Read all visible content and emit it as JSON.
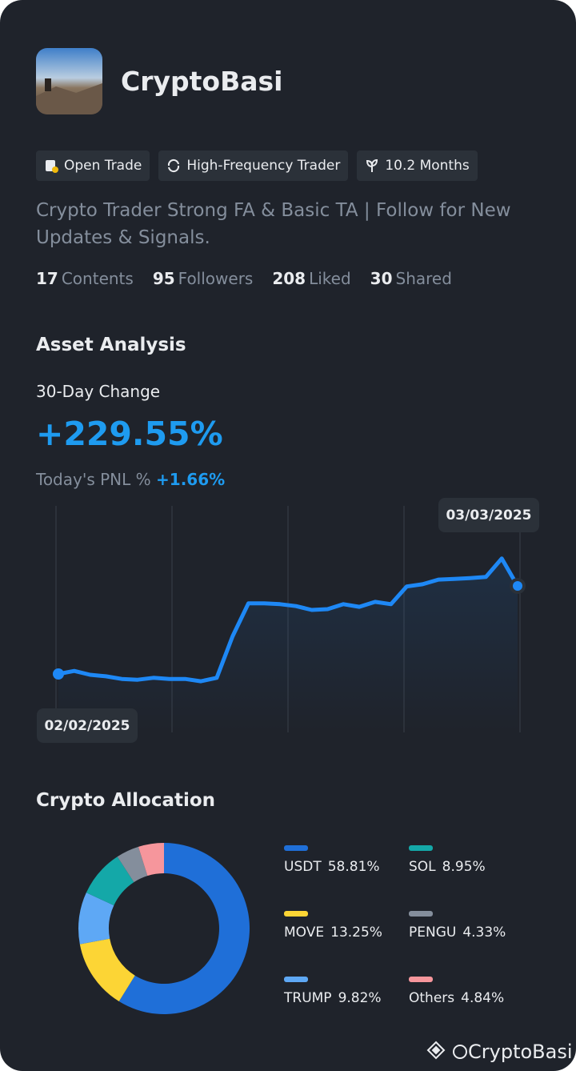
{
  "profile": {
    "name": "CryptoBasi",
    "tags": [
      "Open Trade",
      "High-Frequency Trader",
      "10.2 Months"
    ],
    "bio": "Crypto Trader Strong FA & Basic TA | Follow for New Updates & Signals.",
    "stats": [
      {
        "value": 17,
        "label": "Contents"
      },
      {
        "value": 95,
        "label": "Followers"
      },
      {
        "value": 208,
        "label": "Liked"
      },
      {
        "value": 30,
        "label": "Shared"
      }
    ]
  },
  "asset_analysis": {
    "title": "Asset Analysis",
    "change_label": "30-Day Change",
    "change": "+229.55%",
    "pnl_label": "Today's PNL %",
    "pnl": "+1.66%",
    "chart": {
      "type": "line",
      "start_label": "02/02/2025",
      "end_label": "03/03/2025",
      "color": "#1e88f5",
      "values": [
        0,
        8,
        -2,
        -6,
        -13,
        -15,
        -10,
        -13,
        -13,
        -19,
        -10,
        98,
        184,
        184,
        182,
        177,
        167,
        169,
        182,
        175,
        188,
        182,
        228,
        234,
        246,
        248,
        250,
        253,
        301,
        229.55
      ]
    }
  },
  "allocation": {
    "type": "pie",
    "title": "Crypto Allocation",
    "categories": [
      "USDT",
      "MOVE",
      "TRUMP",
      "SOL",
      "PENGU",
      "Others"
    ],
    "values": [
      58.81,
      13.25,
      9.82,
      8.95,
      4.33,
      4.84
    ],
    "value_labels": [
      "58.81%",
      "13.25%",
      "9.82%",
      "8.95%",
      "4.33%",
      "4.84%"
    ],
    "colors": [
      "#1f6fd8",
      "#fcd535",
      "#5ea8f5",
      "#14a8a8",
      "#848e9c",
      "#f6969c"
    ]
  },
  "watermark": "CryptoBasi"
}
